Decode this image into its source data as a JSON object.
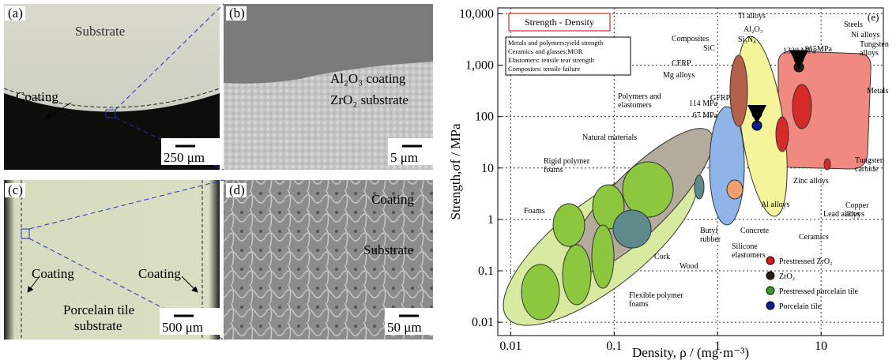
{
  "panels": [
    {
      "label": "(a)",
      "texts": [
        "Substrate",
        "Coating"
      ],
      "scale_bar": "250 μm"
    },
    {
      "label": "(b)",
      "texts": [
        "Al₂O₃ coating",
        "ZrO₂ substrate"
      ],
      "scale_bar": "5 μm"
    },
    {
      "label": "(c)",
      "texts": [
        "Coating",
        "Coating",
        [
          "Porcelain tile",
          "substrate"
        ]
      ],
      "scale_bar": "500 μm"
    },
    {
      "label": "(d)",
      "texts": [
        "Coating",
        "Substrate"
      ],
      "scale_bar": "50 μm"
    }
  ],
  "chart_data": {
    "type": "scatter",
    "panel_label": "(e)",
    "title": "Strength - Density",
    "note": [
      "Metals and polymers:yield strength",
      "Ceramics and glasses:MOR",
      "Elastomers: tensile tear strength",
      "Composites: tensile failure"
    ],
    "x_label": "Density, ρ / (mg·m⁻³)",
    "y_label": "Strength,σf / MPa",
    "log_x": true,
    "log_y": true,
    "grid": true,
    "legend": "lower right",
    "xlim": [
      0.0075,
      40
    ],
    "ylim": [
      0.0055,
      13000
    ],
    "xticks": [
      0.01,
      0.1,
      1,
      10
    ],
    "yticks": [
      0.01,
      0.1,
      1,
      10,
      100,
      {
        "value": 1000,
        "label": "1,000"
      },
      {
        "value": 10000,
        "label": "10,000"
      }
    ],
    "series": [
      {
        "name": "Prestressed ZrO₂",
        "color": "#d7191c",
        "x": [
          6.1
        ],
        "values": [
          1330
        ],
        "value_labels": [
          "1330 MPa"
        ]
      },
      {
        "name": "ZrO₂",
        "color": "#2b1d14",
        "x": [
          6.1
        ],
        "values": [
          915
        ],
        "value_labels": [
          "915MPa"
        ]
      },
      {
        "name": "Prestressed porcelain tile",
        "color": "#3a9a2a",
        "x": [
          2.4
        ],
        "values": [
          114
        ],
        "value_labels": [
          "114 MPa"
        ]
      },
      {
        "name": "Porcelain tile",
        "color": "#0d1f8c",
        "x": [
          2.4
        ],
        "values": [
          67
        ],
        "value_labels": [
          "67 MPa"
        ]
      }
    ],
    "annotations": [
      "Ti alloys",
      "Al₂O₃",
      "Si₃N₄",
      "Composites",
      "SiC",
      "CFRP",
      "Steels",
      "Ni alloys",
      [
        "Tungsten",
        "alloys"
      ],
      "Mg alloys",
      "Metals",
      [
        "Polymers and",
        "elastomers"
      ],
      "GFRP",
      "Natural materials",
      [
        "Rigid polymer",
        "foams"
      ],
      "Foams",
      "Cork",
      "Wood",
      [
        "Butyl",
        "rubber"
      ],
      [
        "Silicone",
        "elastomers"
      ],
      "Concrete",
      "Ceramics",
      "Al alloys",
      "Zinc alloys",
      "Lead alloys",
      [
        "Copper",
        "alloys"
      ],
      [
        "Tungsten",
        "carbide"
      ],
      [
        "Flexible polymer",
        "foams"
      ]
    ]
  }
}
